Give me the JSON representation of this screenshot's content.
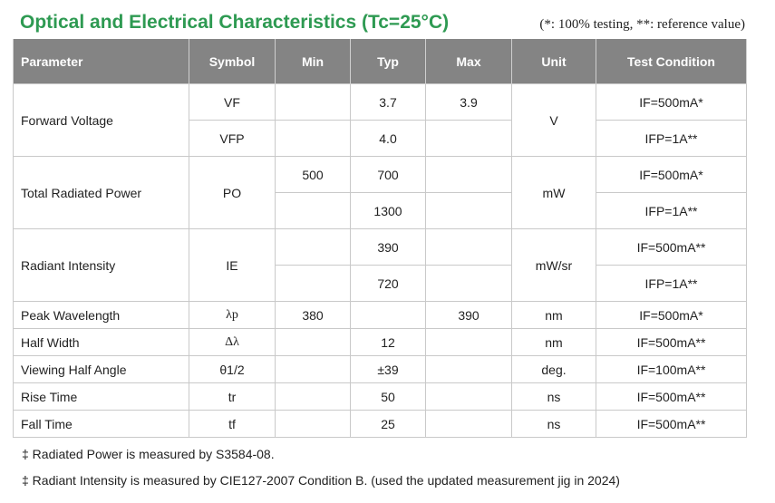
{
  "title": "Optical and Electrical Characteristics (Tc=25°C)",
  "note": "(*: 100% testing, **: reference value)",
  "headers": [
    "Parameter",
    "Symbol",
    "Min",
    "Typ",
    "Max",
    "Unit",
    "Test Condition"
  ],
  "rows": {
    "forward_voltage": {
      "parameter": "Forward Voltage",
      "unit": "V",
      "sub": [
        {
          "symbol": "VF",
          "min": "",
          "typ": "3.7",
          "max": "3.9",
          "condition": "IF=500mA*"
        },
        {
          "symbol": "VFP",
          "min": "",
          "typ": "4.0",
          "max": "",
          "condition": "IFP=1A**"
        }
      ]
    },
    "total_radiated_power": {
      "parameter": "Total Radiated Power",
      "symbol": "PO",
      "unit": "mW",
      "sub": [
        {
          "min": "500",
          "typ": "700",
          "max": "",
          "condition": "IF=500mA*"
        },
        {
          "min": "",
          "typ": "1300",
          "max": "",
          "condition": "IFP=1A**"
        }
      ]
    },
    "radiant_intensity": {
      "parameter": "Radiant Intensity",
      "symbol": "IE",
      "unit": "mW/sr",
      "sub": [
        {
          "min": "",
          "typ": "390",
          "max": "",
          "condition": "IF=500mA**"
        },
        {
          "min": "",
          "typ": "720",
          "max": "",
          "condition": "IFP=1A**"
        }
      ]
    },
    "simple": [
      {
        "parameter": "Peak Wavelength",
        "symbol": "λp",
        "min": "380",
        "typ": "",
        "max": "390",
        "unit": "nm",
        "condition": "IF=500mA*"
      },
      {
        "parameter": "Half Width",
        "symbol": "Δλ",
        "min": "",
        "typ": "12",
        "max": "",
        "unit": "nm",
        "condition": "IF=500mA**"
      },
      {
        "parameter": "Viewing Half Angle",
        "symbol": "θ1/2",
        "min": "",
        "typ": "±39",
        "max": "",
        "unit": "deg.",
        "condition": "IF=100mA**"
      },
      {
        "parameter": "Rise Time",
        "symbol": "tr",
        "min": "",
        "typ": "50",
        "max": "",
        "unit": "ns",
        "condition": "IF=500mA**"
      },
      {
        "parameter": "Fall Time",
        "symbol": "tf",
        "min": "",
        "typ": "25",
        "max": "",
        "unit": "ns",
        "condition": "IF=500mA**"
      }
    ]
  },
  "footnotes": [
    "‡ Radiated Power is measured by S3584-08.",
    "‡ Radiant Intensity is measured by CIE127-2007 Condition B. (used the updated measurement jig in 2024)"
  ]
}
